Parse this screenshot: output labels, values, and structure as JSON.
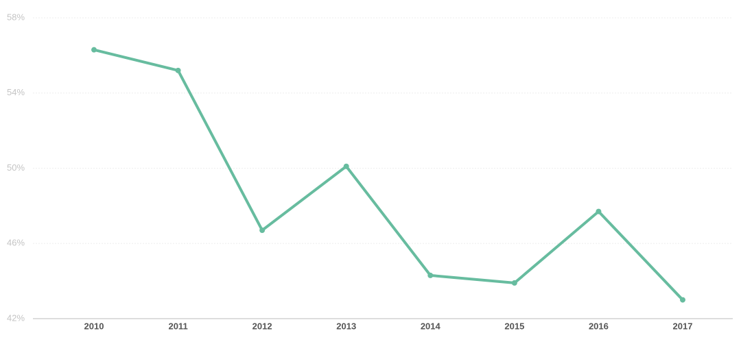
{
  "chart_data": {
    "type": "line",
    "categories": [
      "2010",
      "2011",
      "2012",
      "2013",
      "2014",
      "2015",
      "2016",
      "2017"
    ],
    "values": [
      56.3,
      55.2,
      46.7,
      50.1,
      44.3,
      43.9,
      47.7,
      43.0
    ],
    "color": "#67bc9f",
    "ylim": [
      42,
      58
    ],
    "yticks": [
      {
        "value": 42,
        "label": "42%"
      },
      {
        "value": 46,
        "label": "46%"
      },
      {
        "value": 50,
        "label": "50%"
      },
      {
        "value": 54,
        "label": "54%"
      },
      {
        "value": 58,
        "label": "58%"
      }
    ],
    "grid": true
  }
}
